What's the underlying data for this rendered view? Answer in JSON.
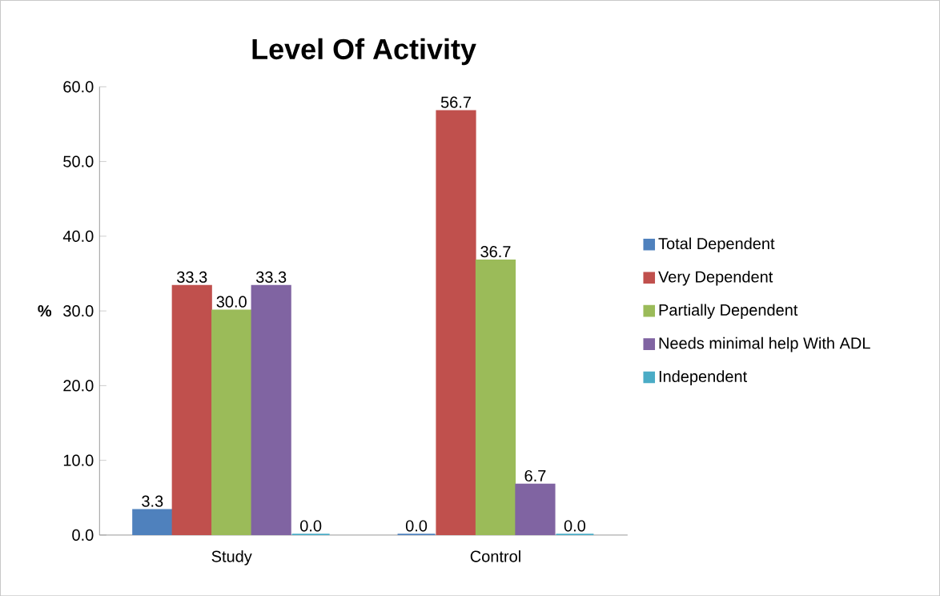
{
  "chart_data": {
    "type": "bar",
    "title": "Level Of Activity",
    "ylabel": "%",
    "categories": [
      "Study",
      "Control"
    ],
    "series": [
      {
        "name": "Total Dependent",
        "color": "#4f81bd",
        "values": [
          3.3,
          0.0
        ],
        "value_labels": [
          "3.3",
          "0.0"
        ]
      },
      {
        "name": "Very Dependent",
        "color": "#c0504d",
        "values": [
          33.3,
          56.7
        ],
        "value_labels": [
          "33.3",
          "56.7"
        ]
      },
      {
        "name": "Partially Dependent",
        "color": "#9bbb59",
        "values": [
          30.0,
          36.7
        ],
        "value_labels": [
          "30.0",
          "36.7"
        ]
      },
      {
        "name": "Needs minimal help With ADL",
        "color": "#8064a2",
        "values": [
          33.3,
          6.7
        ],
        "value_labels": [
          "33.3",
          "6.7"
        ]
      },
      {
        "name": "Independent",
        "color": "#4bacc6",
        "values": [
          0.0,
          0.0
        ],
        "value_labels": [
          "0.0",
          "0.0"
        ]
      }
    ],
    "ylim": [
      0,
      60
    ],
    "yticks": [
      {
        "value": 0,
        "label": "0.0"
      },
      {
        "value": 10,
        "label": "10.0"
      },
      {
        "value": 20,
        "label": "20.0"
      },
      {
        "value": 30,
        "label": "30.0"
      },
      {
        "value": 40,
        "label": "40.0"
      },
      {
        "value": 50,
        "label": "50.0"
      },
      {
        "value": 60,
        "label": "60.0"
      }
    ],
    "legend": "right",
    "grid": false
  }
}
